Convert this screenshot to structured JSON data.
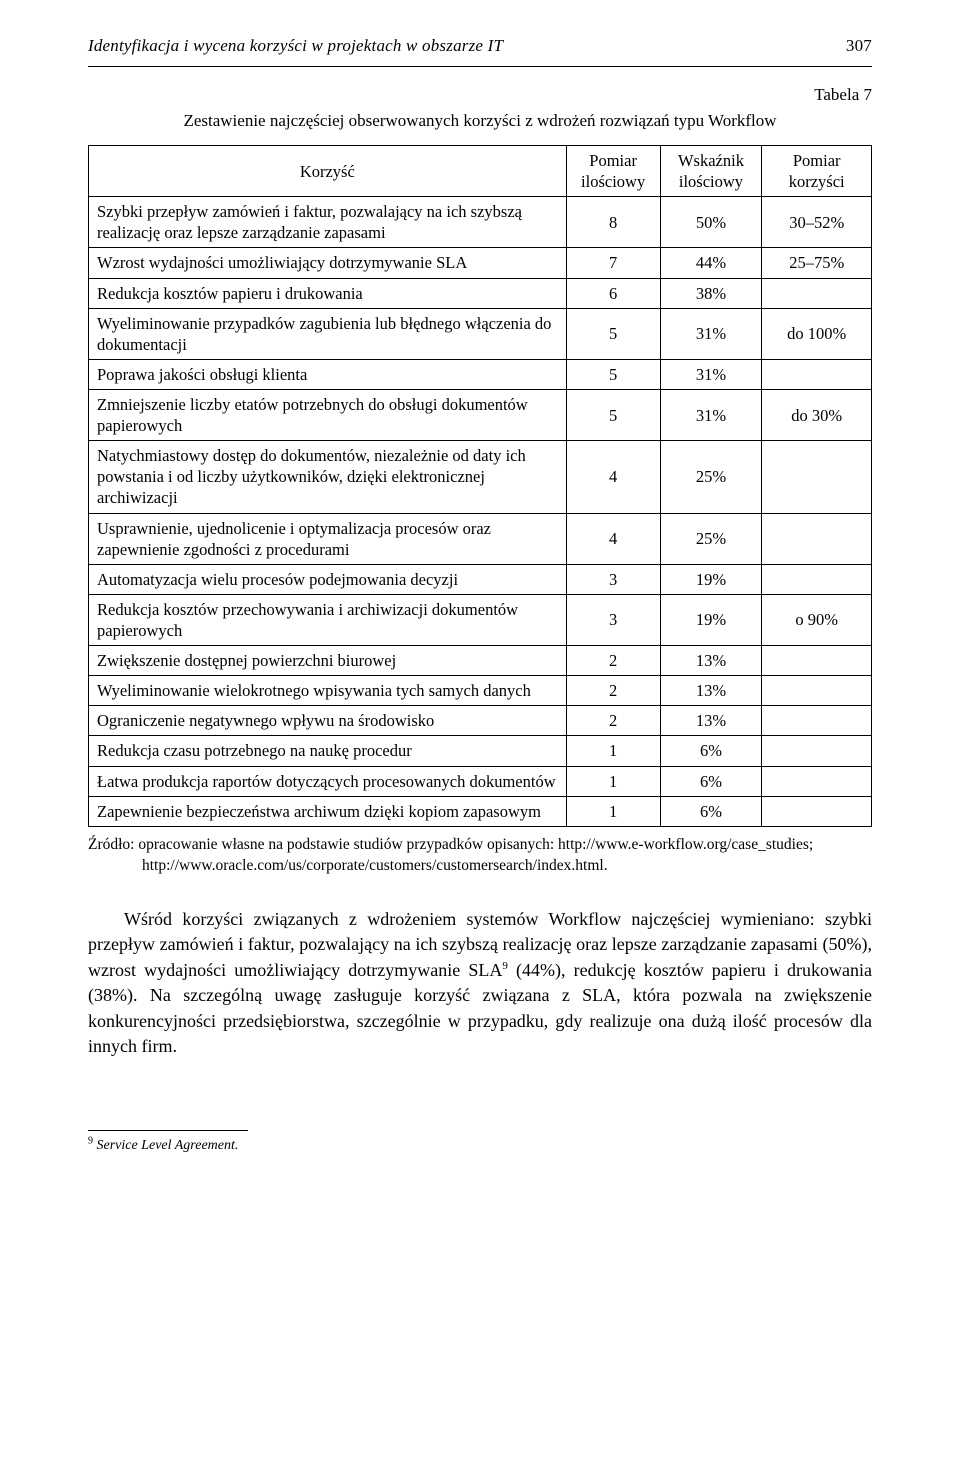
{
  "header": {
    "running_title": "Identyfikacja i wycena korzyści w projektach w obszarze IT",
    "page_number": "307"
  },
  "table": {
    "label": "Tabela 7",
    "title": "Zestawienie najczęściej obserwowanych korzyści z wdrożeń rozwiązań typu Workflow",
    "columns": {
      "benefit": "Korzyść",
      "count": "Pomiar ilościowy",
      "pct": "Wskaźnik ilościowy",
      "value": "Pomiar korzyści"
    },
    "rows": [
      {
        "benefit": "Szybki przepływ zamówień i faktur, pozwalający na ich szybszą realizację oraz lepsze zarządzanie zapasami",
        "count": "8",
        "pct": "50%",
        "value": "30–52%"
      },
      {
        "benefit": "Wzrost wydajności umożliwiający dotrzymywanie SLA",
        "count": "7",
        "pct": "44%",
        "value": "25–75%"
      },
      {
        "benefit": "Redukcja kosztów papieru i drukowania",
        "count": "6",
        "pct": "38%",
        "value": ""
      },
      {
        "benefit": "Wyeliminowanie przypadków zagubienia lub błędnego włączenia do dokumentacji",
        "count": "5",
        "pct": "31%",
        "value": "do 100%"
      },
      {
        "benefit": "Poprawa jakości obsługi klienta",
        "count": "5",
        "pct": "31%",
        "value": ""
      },
      {
        "benefit": "Zmniejszenie liczby etatów potrzebnych do obsługi dokumentów papierowych",
        "count": "5",
        "pct": "31%",
        "value": "do 30%"
      },
      {
        "benefit": "Natychmiastowy dostęp do dokumentów, niezależnie od daty ich powstania i od liczby użytkowników, dzięki elektronicznej archiwizacji",
        "count": "4",
        "pct": "25%",
        "value": ""
      },
      {
        "benefit": "Usprawnienie, ujednolicenie i optymalizacja procesów oraz zapewnienie zgodności z procedurami",
        "count": "4",
        "pct": "25%",
        "value": ""
      },
      {
        "benefit": "Automatyzacja wielu procesów podejmowania decyzji",
        "count": "3",
        "pct": "19%",
        "value": ""
      },
      {
        "benefit": "Redukcja kosztów przechowywania i archiwizacji dokumentów papierowych",
        "count": "3",
        "pct": "19%",
        "value": "o 90%"
      },
      {
        "benefit": "Zwiększenie dostępnej powierzchni biurowej",
        "count": "2",
        "pct": "13%",
        "value": ""
      },
      {
        "benefit": "Wyeliminowanie wielokrotnego wpisywania tych samych danych",
        "count": "2",
        "pct": "13%",
        "value": ""
      },
      {
        "benefit": "Ograniczenie negatywnego wpływu na środowisko",
        "count": "2",
        "pct": "13%",
        "value": ""
      },
      {
        "benefit": "Redukcja czasu potrzebnego na naukę procedur",
        "count": "1",
        "pct": "6%",
        "value": ""
      },
      {
        "benefit": "Łatwa produkcja raportów dotyczących procesowanych dokumentów",
        "count": "1",
        "pct": "6%",
        "value": ""
      },
      {
        "benefit": "Zapewnienie bezpieczeństwa archiwum dzięki kopiom zapasowym",
        "count": "1",
        "pct": "6%",
        "value": ""
      }
    ],
    "source_label": "Źródło:",
    "source_text": "opracowanie własne na podstawie studiów przypadków opisanych: http://www.e-workflow.org/case_studies; http://www.oracle.com/us/corporate/customers/customersearch/index.html."
  },
  "body": {
    "para1_a": "Wśród korzyści związanych z wdrożeniem systemów Workflow najczęściej wymieniano: szybki przepływ zamówień i faktur, pozwalający na ich szybszą realizację oraz lepsze zarządzanie zapasami (50%), wzrost wydajności umożliwiający dotrzymywanie SLA",
    "para1_b": " (44%), redukcję kosztów papieru i drukowania (38%). Na szczególną uwagę zasługuje korzyść związana z SLA, która pozwala na zwiększenie konkurencyjności przedsiębiorstwa, szczególnie w przypadku, gdy realizuje ona dużą ilość procesów dla innych firm.",
    "fn9_marker": "9"
  },
  "footnote": {
    "marker": "9",
    "text": "Service Level Agreement."
  },
  "layout": {
    "col_widths": {
      "benefit_pct": 61,
      "count_pct": 12,
      "pct_pct": 13,
      "value_pct": 14
    }
  },
  "colors": {
    "text": "#000000",
    "background": "#ffffff",
    "border": "#000000"
  },
  "typography": {
    "font_family": "Times New Roman",
    "body_fontsize_pt": 12,
    "table_fontsize_pt": 11,
    "footnote_fontsize_pt": 9
  }
}
